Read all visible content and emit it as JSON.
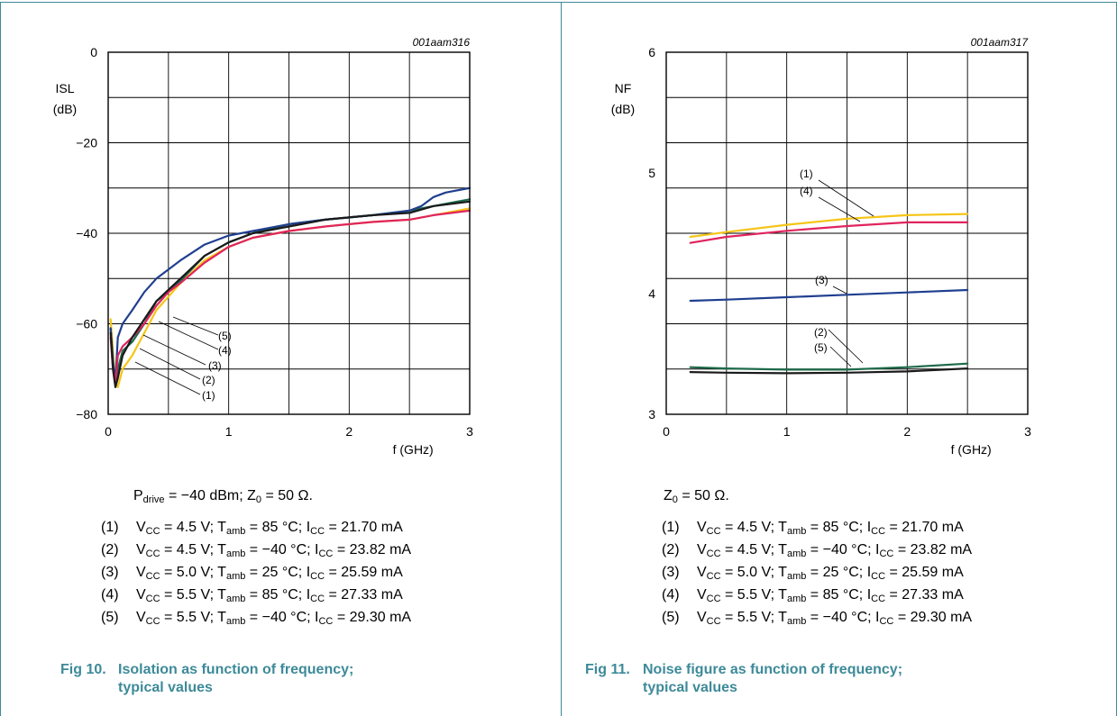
{
  "figures": [
    {
      "id": "fig10",
      "code": "001aam316",
      "ylabel": "ISL",
      "yunit": "(dB)",
      "xlabel": "f (GHz)",
      "x_ticks": [
        "0",
        "1",
        "2",
        "3"
      ],
      "y_ticks": [
        "0",
        "−20",
        "−40",
        "−60",
        "−80"
      ],
      "callouts": [
        "(5)",
        "(4)",
        "(3)",
        "(2)",
        "(1)"
      ],
      "condition": {
        "p1": "P",
        "s1": "drive",
        "p2": " = −40 dBm; Z",
        "s2": "0",
        "p3": " = 50 Ω."
      },
      "caption_num": "Fig 10.",
      "caption_line1": "Isolation as function of frequency;",
      "caption_line2": "typical values"
    },
    {
      "id": "fig11",
      "code": "001aam317",
      "ylabel": "NF",
      "yunit": "(dB)",
      "xlabel": "f (GHz)",
      "x_ticks": [
        "0",
        "1",
        "2",
        "3"
      ],
      "y_ticks": [
        "6",
        "5",
        "4",
        "3"
      ],
      "callouts": [
        "(1)",
        "(4)",
        "(3)",
        "(2)",
        "(5)"
      ],
      "condition": {
        "p1": "Z",
        "s1": "0",
        "p2": " = 50 Ω.",
        "s2": "",
        "p3": ""
      },
      "caption_num": "Fig 11.",
      "caption_line1": "Noise figure as function of frequency;",
      "caption_line2": "typical values"
    }
  ],
  "notes": [
    {
      "num": "(1)",
      "vcc": "4.5 V",
      "tamb": "85 °C",
      "icc": "21.70 mA"
    },
    {
      "num": "(2)",
      "vcc": "4.5 V",
      "tamb": "−40 °C",
      "icc": "23.82 mA"
    },
    {
      "num": "(3)",
      "vcc": "5.0 V",
      "tamb": "25 °C",
      "icc": "25.59 mA"
    },
    {
      "num": "(4)",
      "vcc": "5.5 V",
      "tamb": "85 °C",
      "icc": "27.33 mA"
    },
    {
      "num": "(5)",
      "vcc": "5.5 V",
      "tamb": "−40 °C",
      "icc": "29.30 mA"
    }
  ],
  "labels": {
    "vcc": "V",
    "vcc_sub": "CC",
    "tamb": "T",
    "tamb_sub": "amb",
    "icc": "I",
    "icc_sub": "CC"
  },
  "series_colors": {
    "(1)": "#f5c518",
    "(2)": "#1e6b4a",
    "(3)": "#1f3f8f",
    "(4)": "#e0245e",
    "(5)": "#1a1a1a"
  },
  "chart_data": [
    {
      "type": "line",
      "title": "Isolation as function of frequency; typical values",
      "xlabel": "f (GHz)",
      "ylabel": "ISL (dB)",
      "xlim": [
        0,
        3
      ],
      "ylim": [
        -80,
        0
      ],
      "grid": true,
      "series": [
        {
          "name": "(1)",
          "x": [
            0.02,
            0.04,
            0.06,
            0.08,
            0.12,
            0.2,
            0.3,
            0.4,
            0.5,
            0.6,
            0.8,
            1.0,
            1.2,
            1.5,
            1.8,
            2.0,
            2.2,
            2.5,
            2.7,
            3.0
          ],
          "y": [
            -59,
            -66,
            -73,
            -74,
            -70,
            -67,
            -62,
            -57,
            -54,
            -51,
            -46,
            -43,
            -41,
            -39.5,
            -38.5,
            -38,
            -37.5,
            -37,
            -36,
            -34.5
          ]
        },
        {
          "name": "(2)",
          "x": [
            0.02,
            0.04,
            0.06,
            0.08,
            0.12,
            0.2,
            0.3,
            0.4,
            0.5,
            0.6,
            0.8,
            1.0,
            1.2,
            1.5,
            1.8,
            2.0,
            2.2,
            2.5,
            2.7,
            3.0
          ],
          "y": [
            -61,
            -69,
            -73,
            -70,
            -66,
            -64,
            -60,
            -55,
            -53,
            -50.5,
            -45,
            -42,
            -40,
            -38,
            -37,
            -36.5,
            -36,
            -35,
            -34,
            -32.5
          ]
        },
        {
          "name": "(3)",
          "x": [
            0.02,
            0.04,
            0.06,
            0.08,
            0.12,
            0.2,
            0.3,
            0.4,
            0.5,
            0.6,
            0.8,
            1.0,
            1.2,
            1.5,
            1.8,
            2.0,
            2.2,
            2.5,
            2.6,
            2.7,
            2.8,
            3.0
          ],
          "y": [
            -61,
            -68,
            -73,
            -63,
            -60,
            -57,
            -53,
            -50,
            -48,
            -46,
            -42.5,
            -40.5,
            -39.5,
            -38,
            -37,
            -36.5,
            -36,
            -35,
            -34,
            -32,
            -31,
            -30
          ]
        },
        {
          "name": "(4)",
          "x": [
            0.02,
            0.04,
            0.06,
            0.08,
            0.12,
            0.2,
            0.3,
            0.4,
            0.5,
            0.6,
            0.8,
            1.0,
            1.2,
            1.5,
            1.8,
            2.0,
            2.2,
            2.5,
            2.7,
            3.0
          ],
          "y": [
            -63,
            -70,
            -73,
            -67,
            -65,
            -63,
            -60,
            -56,
            -53,
            -51,
            -46.5,
            -43,
            -41,
            -39.5,
            -38.5,
            -38,
            -37.5,
            -37,
            -36,
            -35
          ]
        },
        {
          "name": "(5)",
          "x": [
            0.02,
            0.04,
            0.06,
            0.08,
            0.12,
            0.2,
            0.3,
            0.4,
            0.5,
            0.6,
            0.8,
            1.0,
            1.2,
            1.5,
            1.8,
            2.0,
            2.2,
            2.5,
            2.7,
            3.0
          ],
          "y": [
            -62,
            -70,
            -74,
            -72,
            -67,
            -63,
            -59,
            -55,
            -52.5,
            -50,
            -45,
            -42,
            -40,
            -38.5,
            -37,
            -36.5,
            -36,
            -35.5,
            -34,
            -33
          ]
        }
      ]
    },
    {
      "type": "line",
      "title": "Noise figure as function of frequency; typical values",
      "xlabel": "f (GHz)",
      "ylabel": "NF (dB)",
      "xlim": [
        0,
        3
      ],
      "ylim": [
        3,
        6
      ],
      "grid": true,
      "series": [
        {
          "name": "(1)",
          "x": [
            0.2,
            0.5,
            1.0,
            1.5,
            2.0,
            2.5
          ],
          "y": [
            4.47,
            4.51,
            4.57,
            4.62,
            4.65,
            4.66
          ]
        },
        {
          "name": "(2)",
          "x": [
            0.2,
            0.5,
            1.0,
            1.5,
            2.0,
            2.5
          ],
          "y": [
            3.39,
            3.38,
            3.37,
            3.37,
            3.39,
            3.42
          ]
        },
        {
          "name": "(3)",
          "x": [
            0.2,
            0.5,
            1.0,
            1.5,
            2.0,
            2.5
          ],
          "y": [
            3.94,
            3.95,
            3.97,
            3.99,
            4.01,
            4.03
          ]
        },
        {
          "name": "(4)",
          "x": [
            0.2,
            0.5,
            1.0,
            1.5,
            2.0,
            2.5
          ],
          "y": [
            4.42,
            4.47,
            4.52,
            4.56,
            4.59,
            4.59
          ]
        },
        {
          "name": "(5)",
          "x": [
            0.2,
            0.5,
            1.0,
            1.5,
            2.0,
            2.5
          ],
          "y": [
            3.35,
            3.345,
            3.34,
            3.345,
            3.355,
            3.38
          ]
        }
      ]
    }
  ]
}
